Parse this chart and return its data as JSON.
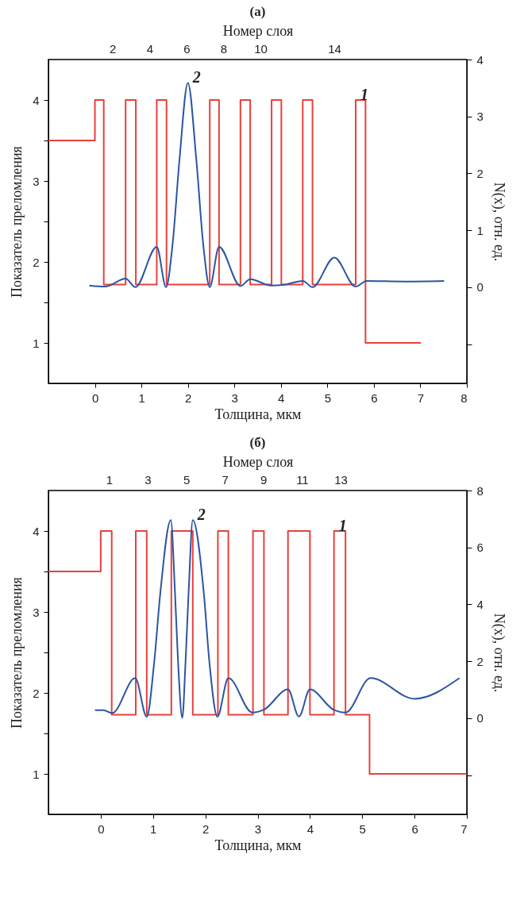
{
  "chart_data": [
    {
      "type": "line",
      "title": "(а)",
      "xlabel": "Толщина, мкм",
      "ylabel": "Показатель преломления",
      "y2label": "N(x), отн. ед.",
      "x2label": "Номер слоя",
      "xlim": [
        -1,
        8
      ],
      "xticks": [
        0,
        1,
        2,
        3,
        4,
        5,
        6,
        7,
        8
      ],
      "ylim": [
        0.5,
        4.5
      ],
      "yticks": [
        {
          "value": 1,
          "label": "1"
        },
        {
          "value": 1.5,
          "label": null
        },
        {
          "value": 2,
          "label": "2"
        },
        {
          "value": 2.5,
          "label": null
        },
        {
          "value": 3,
          "label": "3"
        },
        {
          "value": 3.5,
          "label": null
        },
        {
          "value": 4,
          "label": "4"
        }
      ],
      "y2lim": [
        -1.69,
        4
      ],
      "y2ticks": [
        {
          "value": -1,
          "label": null
        },
        0,
        1,
        2,
        3,
        4
      ],
      "x2lim": [
        -1.47,
        21.17
      ],
      "x2ticks": [
        2,
        4,
        6,
        8,
        10,
        14
      ],
      "series": [
        {
          "type": "step",
          "name": "1",
          "color": "#e8413c",
          "x": [
            -1,
            0,
            0.19,
            0.66,
            0.88,
            1.33,
            1.54,
            2.47,
            2.67,
            3.13,
            3.34,
            3.8,
            4.01,
            4.47,
            4.68,
            5.61,
            5.82,
            7.01
          ],
          "values": [
            3.5,
            4,
            1.72,
            4,
            1.72,
            4,
            1.72,
            4,
            1.72,
            4,
            1.72,
            4,
            1.72,
            4,
            1.72,
            4,
            1,
            1
          ]
        },
        {
          "type": "line",
          "name": "2",
          "axis": "y2",
          "color": "#2b55a3",
          "x": [
            -0.12,
            0.22,
            0.66,
            0.87,
            1.33,
            1.53,
            1.67,
            1.82,
            2.0,
            2.18,
            2.33,
            2.47,
            2.67,
            3.13,
            3.34,
            3.79,
            4.04,
            4.47,
            4.68,
            5.15,
            5.61,
            5.84,
            6.68,
            7.51
          ],
          "values": [
            0.03,
            0.01,
            0.15,
            0,
            0.71,
            0,
            0.75,
            2.25,
            3.59,
            2.25,
            0.75,
            0,
            0.71,
            0.02,
            0.14,
            0.03,
            0.04,
            0.11,
            0,
            0.52,
            0.01,
            0.11,
            0.1,
            0.11
          ]
        }
      ]
    },
    {
      "type": "line",
      "title": "(б)",
      "xlabel": "Толщина, мкм",
      "ylabel": "Показатель преломления",
      "y2label": "N(x), отн. ед.",
      "x2label": "Номер слоя",
      "xlim": [
        -1,
        7
      ],
      "xticks": [
        0,
        1,
        2,
        3,
        4,
        5,
        6,
        7
      ],
      "ylim": [
        0.5,
        4.5
      ],
      "yticks": [
        {
          "value": 1,
          "label": "1"
        },
        {
          "value": 1.5,
          "label": null
        },
        {
          "value": 2,
          "label": "2"
        },
        {
          "value": 2.5,
          "label": null
        },
        {
          "value": 3,
          "label": "3"
        },
        {
          "value": 3.5,
          "label": null
        },
        {
          "value": 4,
          "label": "4"
        }
      ],
      "y2lim": [
        -3.38,
        8
      ],
      "y2ticks": [
        {
          "value": -2,
          "label": null
        },
        0,
        2,
        4,
        6,
        8
      ],
      "x2lim": [
        -2.14,
        19.54
      ],
      "x2ticks": [
        1,
        3,
        5,
        7,
        9,
        11,
        13
      ],
      "series": [
        {
          "type": "step",
          "name": "1",
          "color": "#e8413c",
          "x": [
            -1,
            0,
            0.21,
            0.67,
            0.88,
            1.35,
            1.76,
            2.24,
            2.44,
            2.91,
            3.12,
            3.58,
            4.0,
            4.46,
            4.68,
            5.14,
            7.0
          ],
          "values": [
            3.5,
            4,
            1.73,
            4,
            1.73,
            4,
            1.73,
            4,
            1.73,
            4,
            1.73,
            4,
            1.73,
            4,
            1.73,
            1,
            1
          ]
        },
        {
          "type": "line",
          "name": "2",
          "axis": "y2",
          "color": "#2b55a3",
          "x": [
            -0.11,
            0.05,
            0.22,
            0.66,
            0.88,
            1.02,
            1.14,
            1.34,
            1.42,
            1.48,
            1.56,
            1.62,
            1.68,
            1.76,
            1.97,
            2.08,
            2.23,
            2.44,
            2.9,
            3.12,
            3.58,
            3.79,
            4.0,
            4.45,
            4.68,
            5.16,
            6.0,
            6.86
          ],
          "values": [
            0.28,
            0.28,
            0.18,
            1.41,
            0.05,
            1.92,
            4.41,
            6.96,
            4.41,
            1.92,
            0.01,
            1.92,
            4.41,
            6.96,
            4.41,
            1.92,
            0.05,
            1.41,
            0.2,
            0.3,
            1.01,
            0.06,
            1.01,
            0.3,
            0.2,
            1.41,
            0.68,
            1.41
          ]
        }
      ]
    }
  ]
}
